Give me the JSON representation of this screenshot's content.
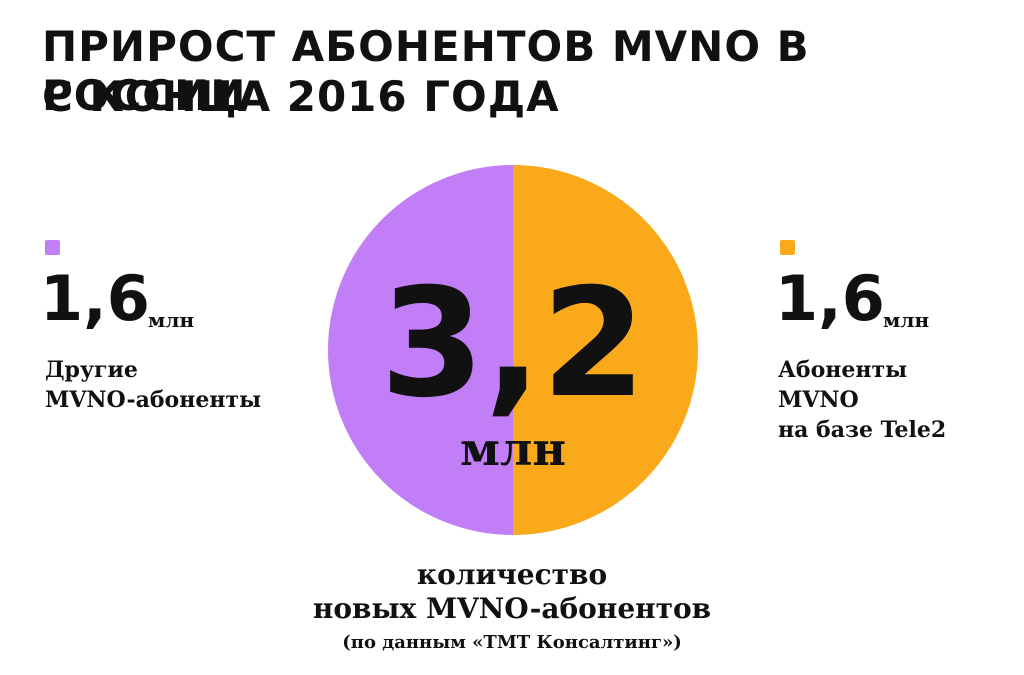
{
  "chart_data": {
    "type": "pie",
    "title": [
      "ПРИРОСТ АБОНЕНТОВ MVNO В РОССИИ",
      "С КОНЦА 2016 ГОДА"
    ],
    "categories": [
      "Другие\nMVNO-абоненты",
      "Абоненты\nMVNO\nна базе Tele2"
    ],
    "values": [
      1.6,
      1.6
    ],
    "value_labels": [
      "1,6",
      "1,6"
    ],
    "colors": [
      "#c17ef7",
      "#f9a91a"
    ],
    "unit": "млн",
    "total": {
      "value": 3.2,
      "label": "3,2"
    },
    "caption": [
      "количество",
      "новых MVNO-абонентов",
      "(по данным «ТМТ Консалтинг»)"
    ]
  }
}
